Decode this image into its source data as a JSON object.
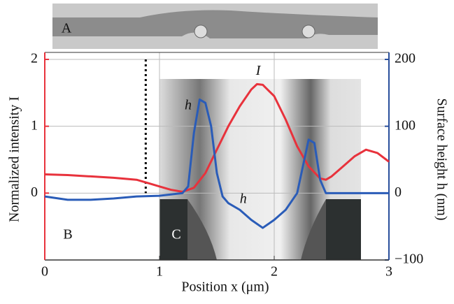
{
  "chart_data": {
    "type": "line",
    "xlabel": "Position x (μm)",
    "ylabel": "Normalized intensity I",
    "y2label": "Surface height h (nm)",
    "xlim": [
      0,
      3
    ],
    "xticks": [
      0,
      1,
      2,
      3
    ],
    "ylim": [
      -1,
      2
    ],
    "yticks": [
      0,
      1,
      2
    ],
    "y2lim": [
      -100,
      200
    ],
    "y2ticks": [
      {
        "value": -100,
        "label": "−100"
      },
      0,
      100,
      200
    ],
    "grid": true,
    "ycolor": "#e8323c",
    "y2color": "#2a4f9c",
    "vline": 0.88,
    "panel_labels": [
      "A",
      "B",
      "C"
    ],
    "series": [
      {
        "name": "I",
        "color": "#e8323c",
        "x": [
          0,
          0.2,
          0.4,
          0.6,
          0.8,
          0.9,
          1.0,
          1.1,
          1.2,
          1.3,
          1.4,
          1.5,
          1.6,
          1.7,
          1.8,
          1.85,
          1.9,
          2.0,
          2.1,
          2.2,
          2.3,
          2.4,
          2.45,
          2.5,
          2.6,
          2.7,
          2.8,
          2.9,
          3.0
        ],
        "values": [
          0.28,
          0.27,
          0.25,
          0.23,
          0.2,
          0.15,
          0.1,
          0.05,
          0.02,
          0.08,
          0.3,
          0.65,
          1.0,
          1.3,
          1.55,
          1.63,
          1.62,
          1.45,
          1.1,
          0.7,
          0.4,
          0.22,
          0.2,
          0.25,
          0.4,
          0.55,
          0.65,
          0.6,
          0.47
        ]
      },
      {
        "name": "h",
        "color": "#2a5cb8",
        "axis": "y2",
        "x": [
          0,
          0.2,
          0.4,
          0.6,
          0.8,
          1.0,
          1.2,
          1.25,
          1.3,
          1.35,
          1.4,
          1.45,
          1.5,
          1.55,
          1.6,
          1.7,
          1.8,
          1.9,
          2.0,
          2.1,
          2.2,
          2.25,
          2.3,
          2.35,
          2.4,
          2.45,
          2.6,
          2.8,
          3.0
        ],
        "values": [
          -5,
          -10,
          -10,
          -8,
          -5,
          -4,
          0,
          10,
          90,
          140,
          135,
          100,
          30,
          -5,
          -15,
          -25,
          -40,
          -52,
          -40,
          -25,
          0,
          40,
          80,
          75,
          20,
          0,
          0,
          0,
          0
        ]
      }
    ],
    "annotations": [
      {
        "text": "I",
        "x": 1.86,
        "y": 1.82
      },
      {
        "text": "h",
        "x": 1.25,
        "y": 1.3
      },
      {
        "text": "h",
        "x": 1.73,
        "y": -0.1
      }
    ]
  }
}
